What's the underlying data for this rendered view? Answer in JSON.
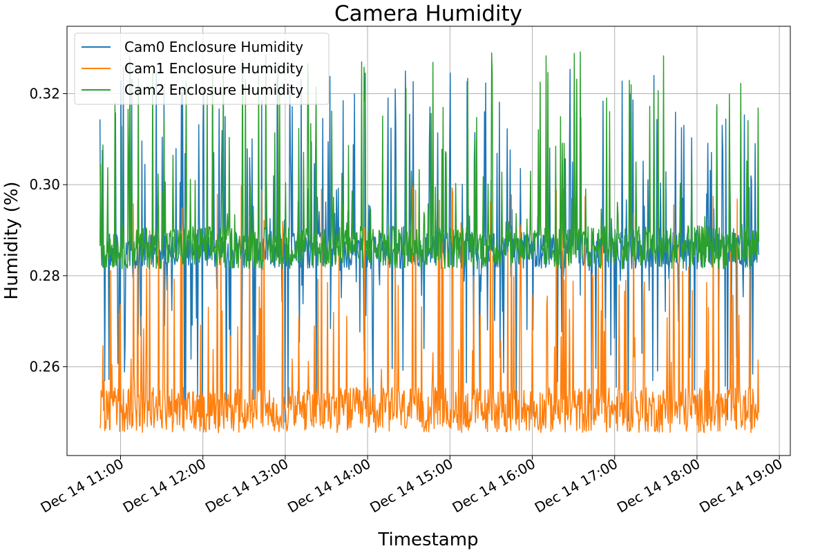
{
  "chart_data": {
    "type": "line",
    "title": "Camera Humidity",
    "xlabel": "Timestamp",
    "ylabel": "Humidity (%)",
    "grid": true,
    "legend_position": "top-left",
    "x_range": [
      "2024-12-14 10:21",
      "2024-12-14 19:08"
    ],
    "ylim": [
      0.2405,
      0.3348
    ],
    "x_ticks": [
      "Dec 14 11:00",
      "Dec 14 12:00",
      "Dec 14 13:00",
      "Dec 14 14:00",
      "Dec 14 15:00",
      "Dec 14 16:00",
      "Dec 14 17:00",
      "Dec 14 18:00",
      "Dec 14 19:00"
    ],
    "y_ticks": [
      "0.26",
      "0.28",
      "0.30",
      "0.32"
    ],
    "x_start": "2024-12-14 10:45",
    "x_end": "2024-12-14 18:45",
    "series": [
      {
        "name": "Cam0 Enclosure Humidity",
        "color": "#1f77b4",
        "baseline": 0.2852,
        "typical_low": 0.2815,
        "typical_high": 0.2895,
        "min": 0.2475,
        "max": 0.326,
        "spike_direction": "both"
      },
      {
        "name": "Cam1 Enclosure Humidity",
        "color": "#ff7f0e",
        "baseline": 0.2475,
        "typical_low": 0.2455,
        "typical_high": 0.2555,
        "min": 0.2445,
        "max": 0.3,
        "spike_direction": "up"
      },
      {
        "name": "Cam2 Enclosure Humidity",
        "color": "#2ca02c",
        "baseline": 0.2855,
        "typical_low": 0.2815,
        "typical_high": 0.291,
        "min": 0.2805,
        "max": 0.33,
        "spike_direction": "up"
      }
    ]
  }
}
